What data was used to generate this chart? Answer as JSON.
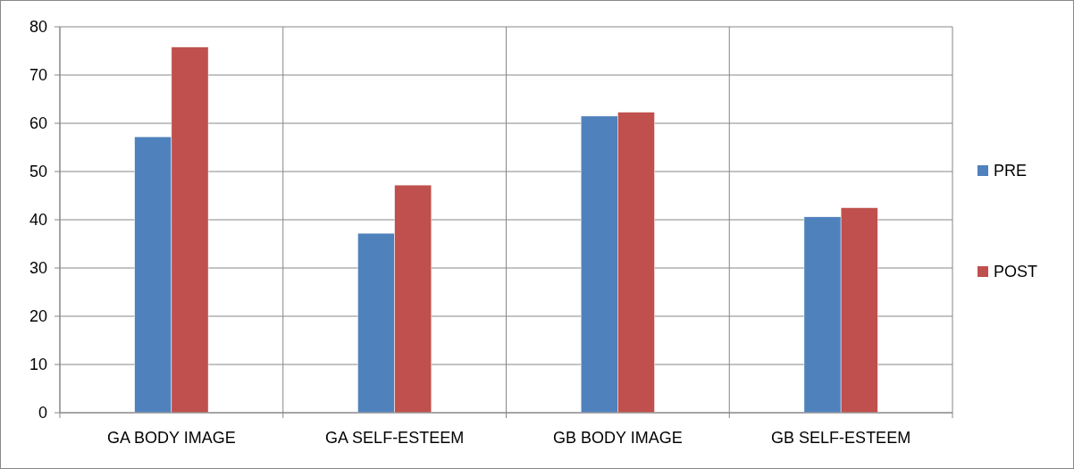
{
  "chart_data": {
    "type": "bar",
    "categories": [
      "GA BODY IMAGE",
      "GA SELF-ESTEEM",
      "GB BODY IMAGE",
      "GB SELF-ESTEEM"
    ],
    "series": [
      {
        "name": "PRE",
        "color": "#4f81bd",
        "values": [
          57.2,
          37.2,
          61.5,
          40.6
        ]
      },
      {
        "name": "POST",
        "color": "#c0504d",
        "values": [
          75.8,
          47.2,
          62.3,
          42.5
        ]
      }
    ],
    "ylim": [
      0,
      80
    ],
    "yticks": [
      0,
      10,
      20,
      30,
      40,
      50,
      60,
      70,
      80
    ],
    "grid": true,
    "legend": "right"
  }
}
